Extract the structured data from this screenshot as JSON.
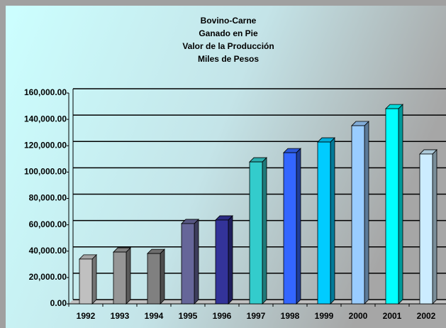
{
  "chart_data": {
    "type": "bar3d",
    "title": [
      "Bovino-Carne",
      "Ganado en Pie",
      "Valor de la Producción",
      "Miles de Pesos"
    ],
    "categories": [
      "1992",
      "1993",
      "1994",
      "1995",
      "1996",
      "1997",
      "1998",
      "1999",
      "2000",
      "2001",
      "2002"
    ],
    "values": [
      34000,
      39300,
      38200,
      60900,
      63600,
      107700,
      114700,
      122800,
      135200,
      148100,
      113700
    ],
    "colors": [
      "#c0c0c0",
      "#969696",
      "#808080",
      "#666699",
      "#333399",
      "#33cccc",
      "#3366ff",
      "#00ccff",
      "#99ccff",
      "#00ffff",
      "#ccecff"
    ],
    "ylim": [
      0,
      160000
    ],
    "yticks": [
      {
        "value": 0,
        "label": "0.00"
      },
      {
        "value": 20000,
        "label": "20,000.00"
      },
      {
        "value": 40000,
        "label": "40,000.00"
      },
      {
        "value": 60000,
        "label": "60,000.00"
      },
      {
        "value": 80000,
        "label": "80,000.00"
      },
      {
        "value": 100000,
        "label": "100,000.00"
      },
      {
        "value": 120000,
        "label": "120,000.00"
      },
      {
        "value": 140000,
        "label": "140,000.00"
      },
      {
        "value": 160000,
        "label": "160,000.00"
      }
    ],
    "grid": true
  }
}
